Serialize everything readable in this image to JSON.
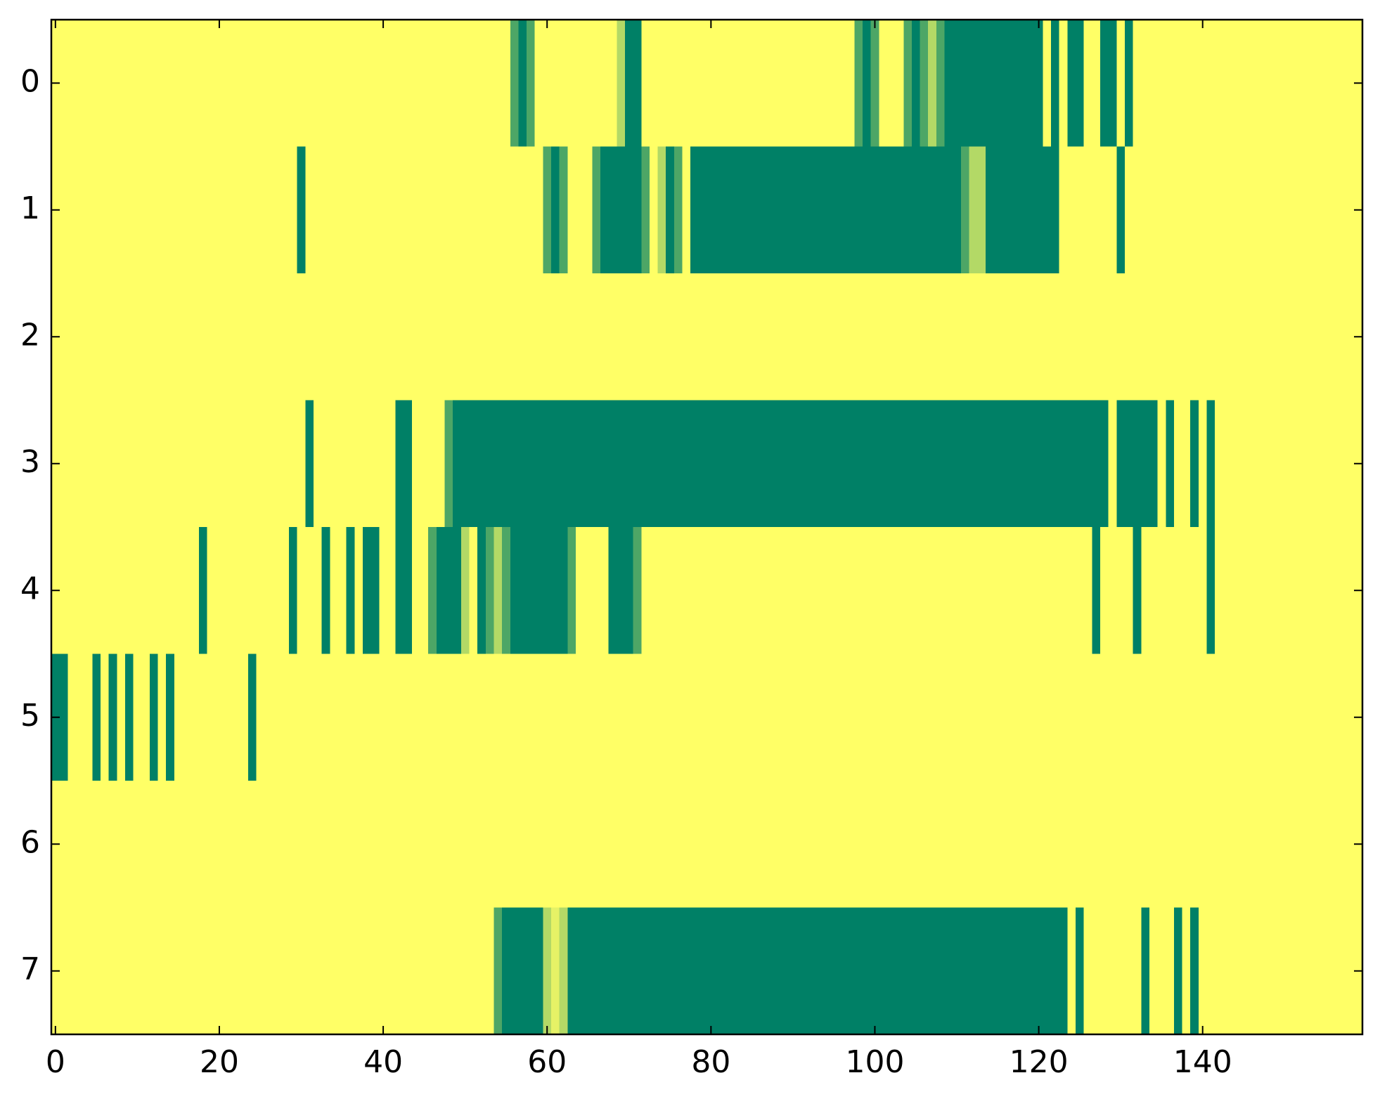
{
  "chart_data": {
    "type": "heatmap",
    "colormap": "summer",
    "rows": [
      0,
      1,
      2,
      3,
      4,
      5,
      6,
      7
    ],
    "xlim": [
      -0.5,
      159.5
    ],
    "ylim": [
      7.5,
      -0.5
    ],
    "xticks": [
      0,
      20,
      40,
      60,
      80,
      100,
      120,
      140
    ],
    "yticks": [
      0,
      1,
      2,
      3,
      4,
      5,
      6,
      7
    ],
    "values": [
      [
        1,
        1,
        1,
        1,
        1,
        1,
        1,
        1,
        1,
        1,
        1,
        1,
        1,
        1,
        1,
        1,
        1,
        1,
        1,
        1,
        1,
        1,
        1,
        1,
        1,
        1,
        1,
        1,
        1,
        1,
        1,
        1,
        1,
        1,
        1,
        1,
        1,
        1,
        1,
        1,
        1,
        1,
        1,
        1,
        1,
        1,
        1,
        1,
        1,
        1,
        1,
        1,
        1,
        1,
        1,
        1,
        0.3,
        0,
        0.3,
        1,
        1,
        1,
        1,
        1,
        1,
        1,
        1,
        1,
        1,
        0.7,
        0,
        0,
        1,
        1,
        1,
        1,
        1,
        1,
        1,
        1,
        1,
        1,
        1,
        1,
        1,
        1,
        1,
        1,
        1,
        1,
        1,
        1,
        1,
        1,
        1,
        1,
        1,
        1,
        0.3,
        0,
        0.3,
        1,
        1,
        1,
        0.3,
        0,
        0.3,
        0.7,
        0.3,
        0,
        0,
        0,
        0,
        0,
        0,
        0,
        0,
        0,
        0,
        0,
        0,
        1,
        0,
        1,
        0,
        0,
        1,
        1,
        0,
        0,
        1,
        0,
        1,
        1,
        1,
        1,
        1,
        1,
        1,
        1,
        1,
        1,
        1,
        1,
        1,
        1,
        1,
        1,
        1,
        1,
        1,
        1,
        1,
        1,
        1,
        1,
        1,
        1,
        1,
        1
      ],
      [
        1,
        1,
        1,
        1,
        1,
        1,
        1,
        1,
        1,
        1,
        1,
        1,
        1,
        1,
        1,
        1,
        1,
        1,
        1,
        1,
        1,
        1,
        1,
        1,
        1,
        1,
        1,
        1,
        1,
        1,
        0,
        1,
        1,
        1,
        1,
        1,
        1,
        1,
        1,
        1,
        1,
        1,
        1,
        1,
        1,
        1,
        1,
        1,
        1,
        1,
        1,
        1,
        1,
        1,
        1,
        1,
        1,
        1,
        1,
        1,
        0.3,
        0,
        0.3,
        1,
        1,
        1,
        0.3,
        0,
        0,
        0,
        0,
        0,
        0.3,
        1,
        0.7,
        0,
        0.3,
        1,
        0,
        0,
        0,
        0,
        0,
        0,
        0,
        0,
        0,
        0,
        0,
        0,
        0,
        0,
        0,
        0,
        0,
        0,
        0,
        0,
        0,
        0,
        0,
        0,
        0,
        0,
        0,
        0,
        0,
        0,
        0,
        0,
        0,
        0.3,
        0.7,
        0.7,
        0,
        0,
        0,
        0,
        0,
        0,
        0,
        0,
        0,
        1,
        1,
        1,
        1,
        1,
        1,
        1,
        0,
        1,
        1,
        1,
        1,
        1,
        1,
        1,
        1,
        1,
        1,
        1,
        1,
        1,
        1,
        1,
        1,
        1,
        1,
        1,
        1,
        1,
        1,
        1,
        1,
        1,
        1,
        1,
        1,
        1
      ],
      [
        1,
        1,
        1,
        1,
        1,
        1,
        1,
        1,
        1,
        1,
        1,
        1,
        1,
        1,
        1,
        1,
        1,
        1,
        1,
        1,
        1,
        1,
        1,
        1,
        1,
        1,
        1,
        1,
        1,
        1,
        1,
        1,
        1,
        1,
        1,
        1,
        1,
        1,
        1,
        1,
        1,
        1,
        1,
        1,
        1,
        1,
        1,
        1,
        1,
        1,
        1,
        1,
        1,
        1,
        1,
        1,
        1,
        1,
        1,
        1,
        1,
        1,
        1,
        1,
        1,
        1,
        1,
        1,
        1,
        1,
        1,
        1,
        1,
        1,
        1,
        1,
        1,
        1,
        1,
        1,
        1,
        1,
        1,
        1,
        1,
        1,
        1,
        1,
        1,
        1,
        1,
        1,
        1,
        1,
        1,
        1,
        1,
        1,
        1,
        1,
        1,
        1,
        1,
        1,
        1,
        1,
        1,
        1,
        1,
        1,
        1,
        1,
        1,
        1,
        1,
        1,
        1,
        1,
        1,
        1,
        1,
        1,
        1,
        1,
        1,
        1,
        1,
        1,
        1,
        1,
        1,
        1,
        1,
        1,
        1,
        1,
        1,
        1,
        1,
        1,
        1,
        1,
        1,
        1,
        1,
        1,
        1,
        1,
        1,
        1,
        1,
        1,
        1,
        1,
        1,
        1,
        1,
        1,
        1,
        1
      ],
      [
        1,
        1,
        1,
        1,
        1,
        1,
        1,
        1,
        1,
        1,
        1,
        1,
        1,
        1,
        1,
        1,
        1,
        1,
        1,
        1,
        1,
        1,
        1,
        1,
        1,
        1,
        1,
        1,
        1,
        1,
        1,
        0,
        1,
        1,
        1,
        1,
        1,
        1,
        1,
        1,
        1,
        1,
        0,
        0,
        1,
        1,
        1,
        1,
        0.3,
        0,
        0,
        0,
        0,
        0,
        0,
        0,
        0,
        0,
        0,
        0,
        0,
        0,
        0,
        0,
        0,
        0,
        0,
        0,
        0,
        0,
        0,
        0,
        0,
        0,
        0,
        0,
        0,
        0,
        0,
        0,
        0,
        0,
        0,
        0,
        0,
        0,
        0,
        0,
        0,
        0,
        0,
        0,
        0,
        0,
        0,
        0,
        0,
        0,
        0,
        0,
        0,
        0,
        0,
        0,
        0,
        0,
        0,
        0,
        0,
        0,
        0,
        0,
        0,
        0,
        0,
        0,
        0,
        0,
        0,
        0,
        0,
        0,
        0,
        0,
        0,
        0,
        0,
        0,
        0,
        1,
        0,
        0,
        0,
        0,
        0,
        1,
        0,
        1,
        1,
        0,
        1,
        0,
        1,
        1,
        1,
        1,
        1,
        1,
        1,
        1,
        1,
        1,
        1,
        1,
        1,
        1,
        1,
        1,
        1,
        1
      ],
      [
        1,
        1,
        1,
        1,
        1,
        1,
        1,
        1,
        1,
        1,
        1,
        1,
        1,
        1,
        1,
        1,
        1,
        1,
        0,
        1,
        1,
        1,
        1,
        1,
        1,
        1,
        1,
        1,
        1,
        0,
        1,
        1,
        1,
        0,
        1,
        1,
        0,
        1,
        0,
        0,
        1,
        1,
        0,
        0,
        1,
        1,
        0.3,
        0,
        0,
        0,
        0.7,
        1,
        0,
        0.3,
        0.7,
        0.3,
        0,
        0,
        0,
        0,
        0,
        0,
        0,
        0.3,
        1,
        1,
        1,
        1,
        0,
        0,
        0,
        0.3,
        1,
        1,
        1,
        1,
        1,
        1,
        1,
        1,
        1,
        1,
        1,
        1,
        1,
        1,
        1,
        1,
        1,
        1,
        1,
        1,
        1,
        1,
        1,
        1,
        1,
        1,
        1,
        1,
        1,
        1,
        1,
        1,
        1,
        1,
        1,
        1,
        1,
        1,
        1,
        1,
        1,
        1,
        1,
        1,
        1,
        1,
        1,
        1,
        1,
        1,
        1,
        1,
        1,
        1,
        1,
        0,
        1,
        1,
        1,
        1,
        0,
        1,
        1,
        1,
        1,
        1,
        1,
        1,
        1,
        0,
        1,
        1,
        1,
        1,
        1,
        1,
        1,
        1,
        1,
        1,
        1,
        1,
        1,
        1,
        1,
        1,
        1,
        1
      ],
      [
        0,
        0,
        1,
        1,
        1,
        0,
        1,
        0,
        1,
        0,
        1,
        1,
        0,
        1,
        0,
        1,
        1,
        1,
        1,
        1,
        1,
        1,
        1,
        1,
        0,
        1,
        1,
        1,
        1,
        1,
        1,
        1,
        1,
        1,
        1,
        1,
        1,
        1,
        1,
        1,
        1,
        1,
        1,
        1,
        1,
        1,
        1,
        1,
        1,
        1,
        1,
        1,
        1,
        1,
        1,
        1,
        1,
        1,
        1,
        1,
        1,
        1,
        1,
        1,
        1,
        1,
        1,
        1,
        1,
        1,
        1,
        1,
        1,
        1,
        1,
        1,
        1,
        1,
        1,
        1,
        1,
        1,
        1,
        1,
        1,
        1,
        1,
        1,
        1,
        1,
        1,
        1,
        1,
        1,
        1,
        1,
        1,
        1,
        1,
        1,
        1,
        1,
        1,
        1,
        1,
        1,
        1,
        1,
        1,
        1,
        1,
        1,
        1,
        1,
        1,
        1,
        1,
        1,
        1,
        1,
        1,
        1,
        1,
        1,
        1,
        1,
        1,
        1,
        1,
        1,
        1,
        1,
        1,
        1,
        1,
        1,
        1,
        1,
        1,
        1,
        1,
        1,
        1,
        1,
        1,
        1,
        1,
        1,
        1,
        1,
        1,
        1,
        1,
        1,
        1,
        1,
        1,
        1,
        1,
        1
      ],
      [
        1,
        1,
        1,
        1,
        1,
        1,
        1,
        1,
        1,
        1,
        1,
        1,
        1,
        1,
        1,
        1,
        1,
        1,
        1,
        1,
        1,
        1,
        1,
        1,
        1,
        1,
        1,
        1,
        1,
        1,
        1,
        1,
        1,
        1,
        1,
        1,
        1,
        1,
        1,
        1,
        1,
        1,
        1,
        1,
        1,
        1,
        1,
        1,
        1,
        1,
        1,
        1,
        1,
        1,
        1,
        1,
        1,
        1,
        1,
        1,
        1,
        1,
        1,
        1,
        1,
        1,
        1,
        1,
        1,
        1,
        1,
        1,
        1,
        1,
        1,
        1,
        1,
        1,
        1,
        1,
        1,
        1,
        1,
        1,
        1,
        1,
        1,
        1,
        1,
        1,
        1,
        1,
        1,
        1,
        1,
        1,
        1,
        1,
        1,
        1,
        1,
        1,
        1,
        1,
        1,
        1,
        1,
        1,
        1,
        1,
        1,
        1,
        1,
        1,
        1,
        1,
        1,
        1,
        1,
        1,
        1,
        1,
        1,
        1,
        1,
        1,
        1,
        1,
        1,
        1,
        1,
        1,
        1,
        1,
        1,
        1,
        1,
        1,
        1,
        1,
        1,
        1,
        1,
        1,
        1,
        1,
        1,
        1,
        1,
        1,
        1,
        1,
        1,
        1,
        1,
        1,
        1,
        1,
        1,
        1
      ],
      [
        1,
        1,
        1,
        1,
        1,
        1,
        1,
        1,
        1,
        1,
        1,
        1,
        1,
        1,
        1,
        1,
        1,
        1,
        1,
        1,
        1,
        1,
        1,
        1,
        1,
        1,
        1,
        1,
        1,
        1,
        1,
        1,
        1,
        1,
        1,
        1,
        1,
        1,
        1,
        1,
        1,
        1,
        1,
        1,
        1,
        1,
        1,
        1,
        1,
        1,
        1,
        1,
        1,
        1,
        0.3,
        0,
        0,
        0,
        0,
        0,
        0.7,
        0.9,
        0.7,
        0,
        0,
        0,
        0,
        0,
        0,
        0,
        0,
        0,
        0,
        0,
        0,
        0,
        0,
        0,
        0,
        0,
        0,
        0,
        0,
        0,
        0,
        0,
        0,
        0,
        0,
        0,
        0,
        0,
        0,
        0,
        0,
        0,
        0,
        0,
        0,
        0,
        0,
        0,
        0,
        0,
        0,
        0,
        0,
        0,
        0,
        0,
        0,
        0,
        0,
        0,
        0,
        0,
        0,
        0,
        0,
        0,
        0,
        0,
        0,
        0,
        1,
        0,
        1,
        1,
        1,
        1,
        1,
        1,
        1,
        0,
        1,
        1,
        1,
        0,
        1,
        0,
        1,
        1,
        1,
        1,
        1,
        1,
        1,
        1,
        1,
        1,
        1,
        1,
        1,
        1,
        1,
        1,
        1,
        1,
        1,
        1
      ]
    ]
  }
}
